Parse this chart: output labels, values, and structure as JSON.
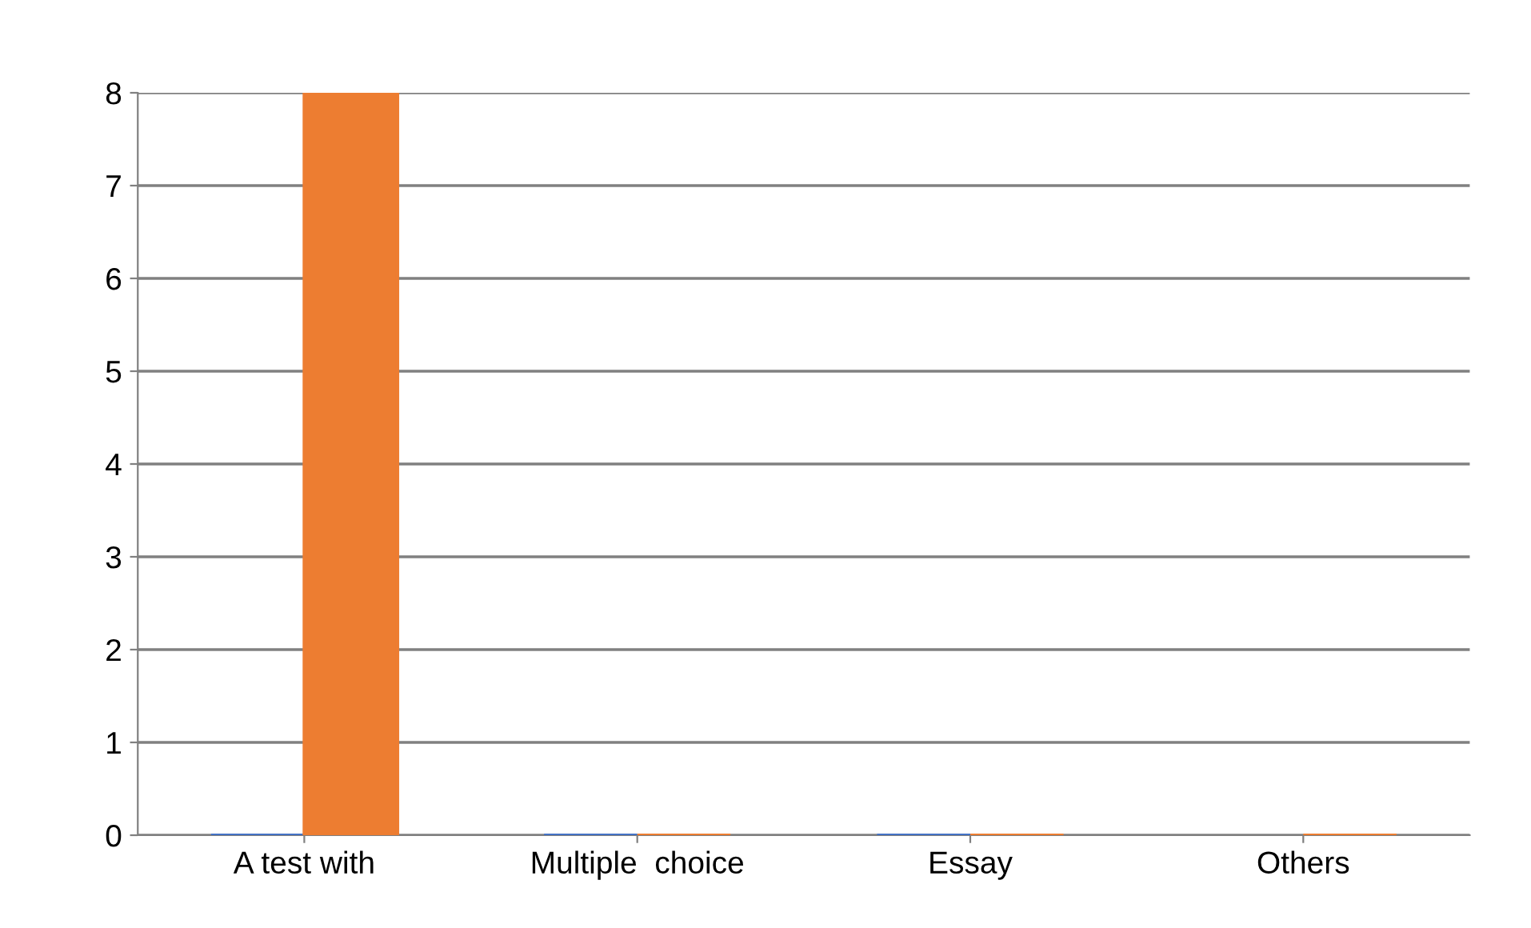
{
  "chart_data": {
    "type": "bar",
    "categories": [
      "A test with",
      "Multiple  choice",
      "Essay",
      "Others"
    ],
    "series": [
      {
        "color": "#4472c4",
        "values": [
          0,
          0,
          0,
          null
        ]
      },
      {
        "color": "#ed7d31",
        "values": [
          8,
          0,
          0,
          0
        ]
      }
    ],
    "ylim": [
      0,
      8
    ],
    "yticks": [
      0,
      1,
      2,
      3,
      4,
      5,
      6,
      7,
      8
    ],
    "grid": "y"
  }
}
